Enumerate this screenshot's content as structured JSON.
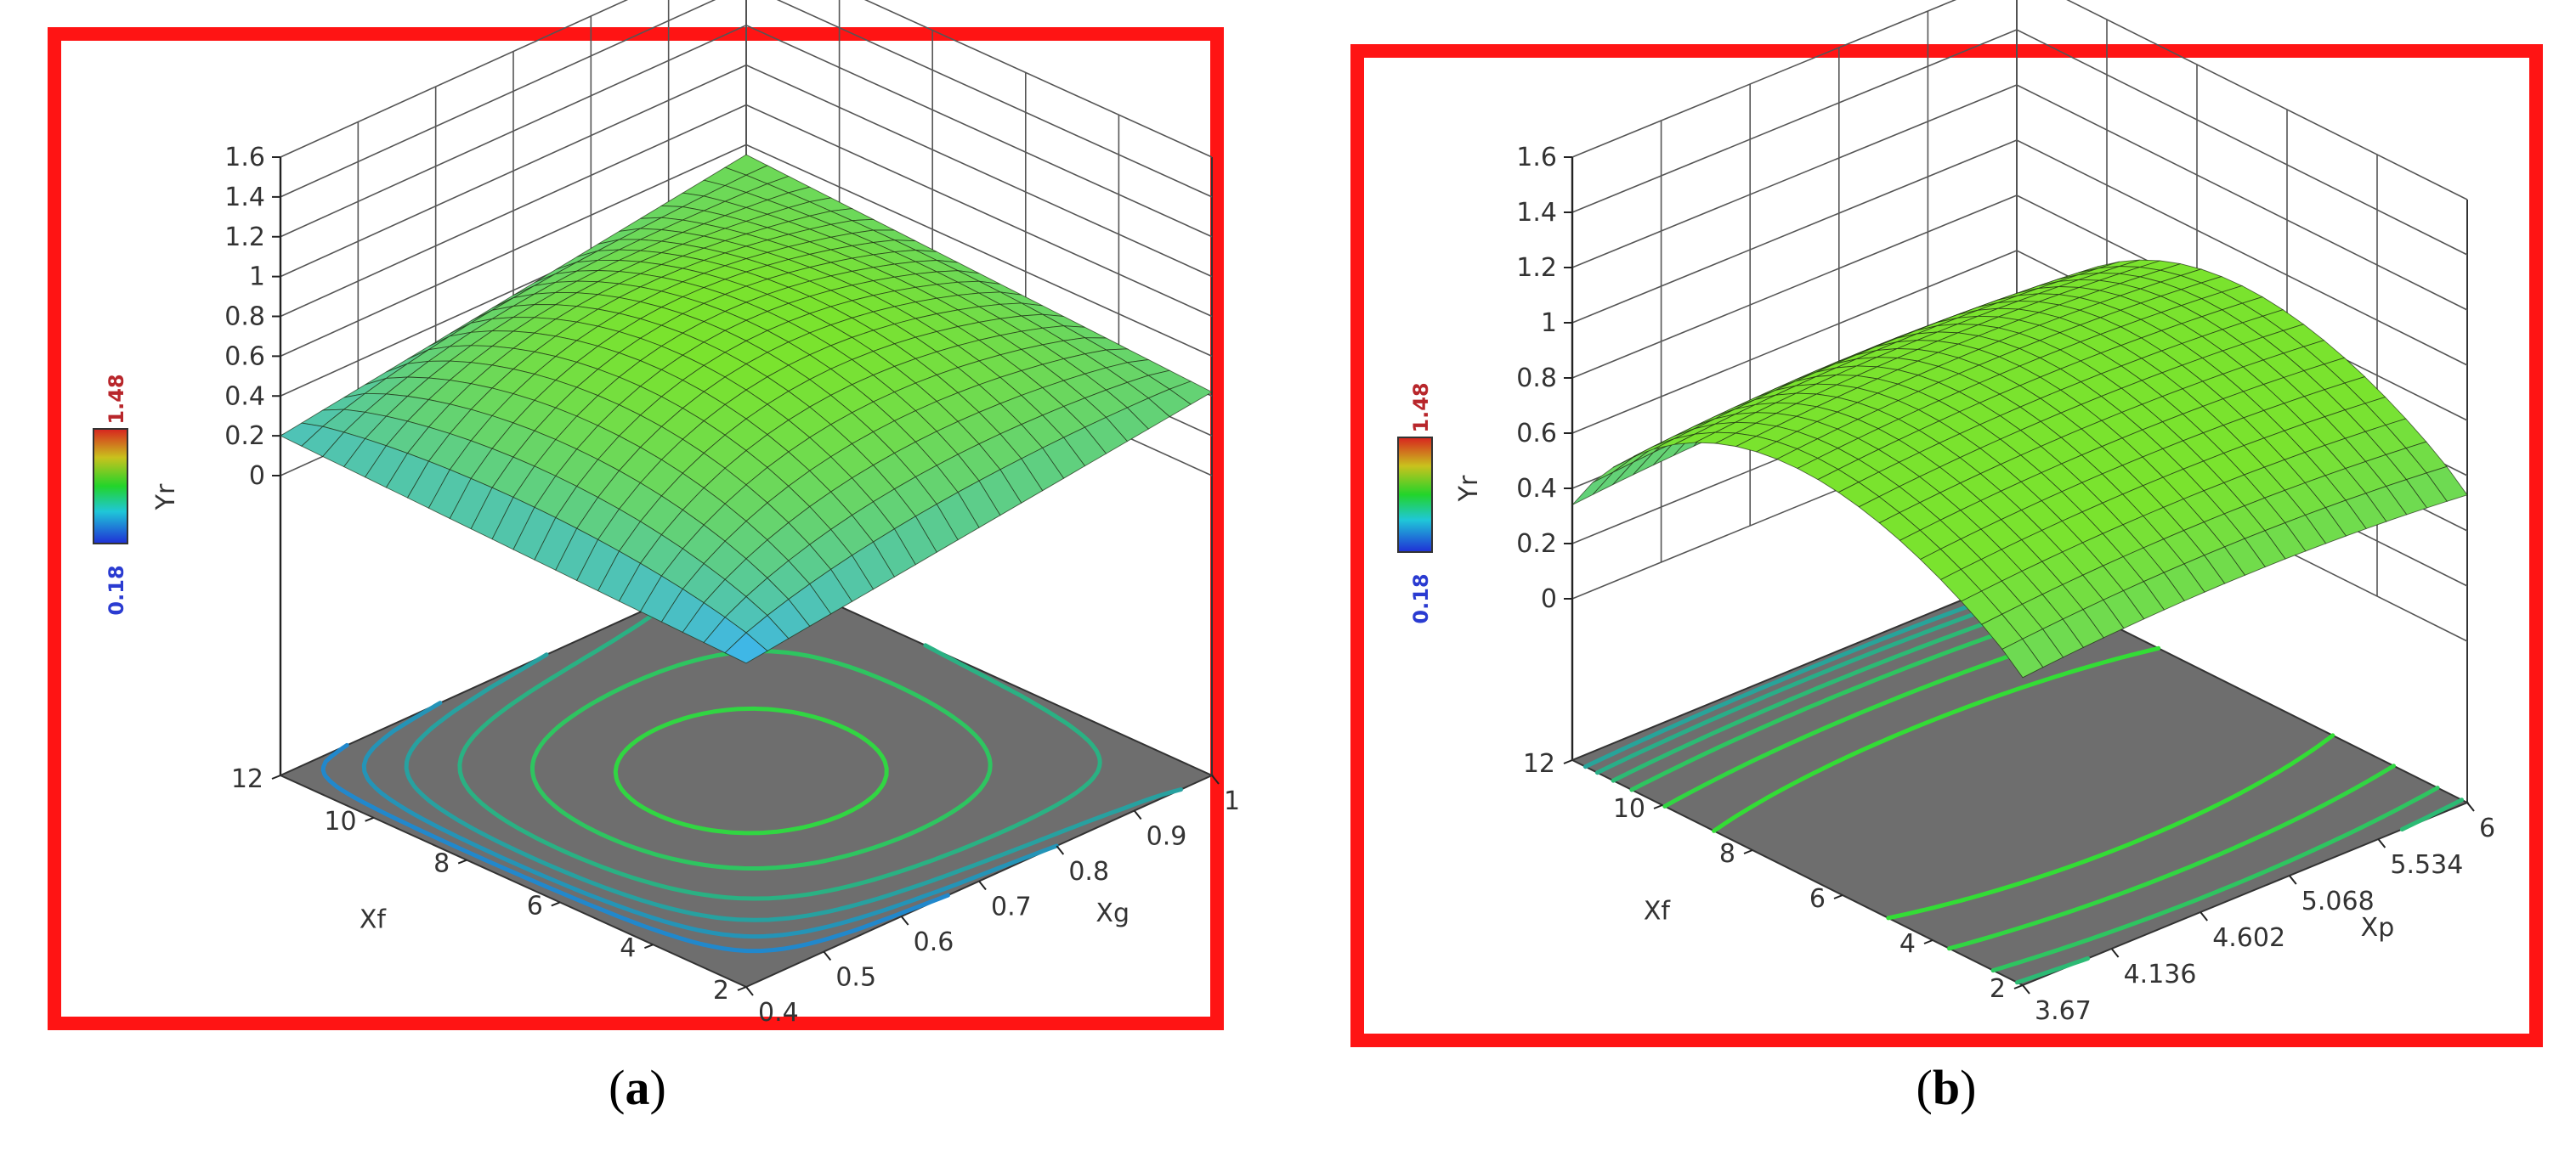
{
  "colors": {
    "frame": "#ff1414",
    "floor": "#6e6e6e",
    "surface_high": "#7ae32e",
    "surface_low": "#3fb7e6",
    "grid": "#444444",
    "colorbar_high": "#b8262b",
    "colorbar_low": "#2a3bd1"
  },
  "chart_data": [
    {
      "type": "surface",
      "caption": {
        "open": "(",
        "letter": "a",
        "close": ")"
      },
      "zlabel": "Yr",
      "xlabel": "Xg",
      "ylabel": "Xf",
      "x_ticks": [
        "0.4",
        "0.5",
        "0.6",
        "0.7",
        "0.8",
        "0.9",
        "1"
      ],
      "y_ticks": [
        "2",
        "4",
        "6",
        "8",
        "10",
        "12"
      ],
      "z_ticks": [
        "0",
        "0.2",
        "0.4",
        "0.6",
        "0.8",
        "1",
        "1.2",
        "1.4",
        "1.6"
      ],
      "xlim": [
        0.4,
        1.0
      ],
      "ylim": [
        2,
        12
      ],
      "zlim": [
        0,
        1.6
      ],
      "colorbar": {
        "min_label": "0.18",
        "max_label": "1.48"
      },
      "surface": {
        "corner_x_lo_y_lo": 0.12,
        "corner_x_lo_y_hi": 0.2,
        "corner_x_hi_y_lo": 0.42,
        "corner_x_hi_y_hi": 0.55,
        "peak": 0.78
      },
      "contour_levels": [
        0.25,
        0.32,
        0.4,
        0.5,
        0.62,
        0.72
      ]
    },
    {
      "type": "surface",
      "caption": {
        "open": "(",
        "letter": "b",
        "close": ")"
      },
      "zlabel": "Yr",
      "xlabel": "Xp",
      "ylabel": "Xf",
      "x_ticks": [
        "3.67",
        "4.136",
        "4.602",
        "5.068",
        "5.534",
        "6"
      ],
      "y_ticks": [
        "2",
        "4",
        "6",
        "8",
        "10",
        "12"
      ],
      "z_ticks": [
        "0",
        "0.2",
        "0.4",
        "0.6",
        "0.8",
        "1",
        "1.2",
        "1.4",
        "1.6"
      ],
      "xlim": [
        3.67,
        6.0
      ],
      "ylim": [
        2,
        12
      ],
      "zlim": [
        0,
        1.6
      ],
      "colorbar": {
        "min_label": "0.18",
        "max_label": "1.48"
      },
      "surface": {
        "at_y_lo": 0.57,
        "at_y_hi": 0.38,
        "peak": 0.92
      },
      "contour_levels": [
        0.42,
        0.48,
        0.55,
        0.62,
        0.72,
        0.82
      ]
    }
  ]
}
